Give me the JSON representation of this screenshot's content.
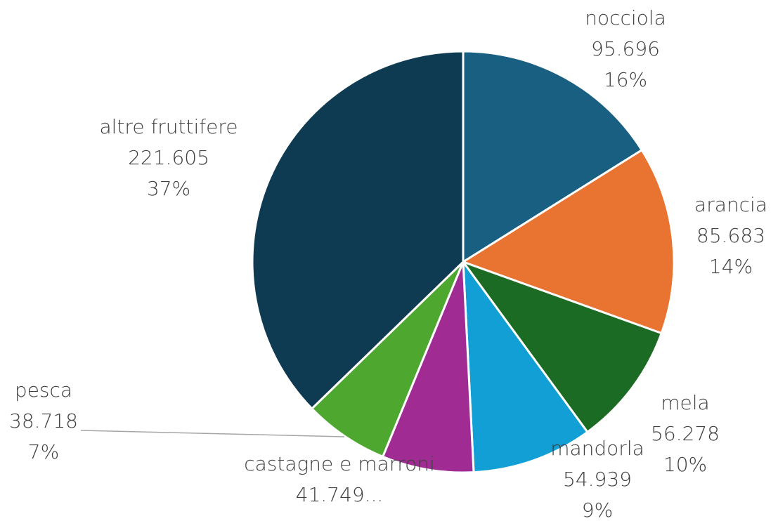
{
  "chart_data": {
    "type": "pie",
    "categories": [
      "nocciola",
      "arancia",
      "mela",
      "mandorla",
      "castagne e marroni",
      "pesca",
      "altre fruttifere"
    ],
    "values": [
      95696,
      85683,
      56278,
      54939,
      41749,
      38718,
      221605
    ],
    "value_labels": [
      "95.696",
      "85.683",
      "56.278",
      "54.939",
      "41.749...",
      "38.718",
      "221.605"
    ],
    "percent_labels": [
      "16%",
      "14%",
      "10%",
      "9%",
      null,
      "7%",
      "37%"
    ],
    "colors": [
      "#185f82",
      "#e97432",
      "#1c6b24",
      "#119fd6",
      "#a02b93",
      "#4ea72e",
      "#0e3a52"
    ]
  }
}
